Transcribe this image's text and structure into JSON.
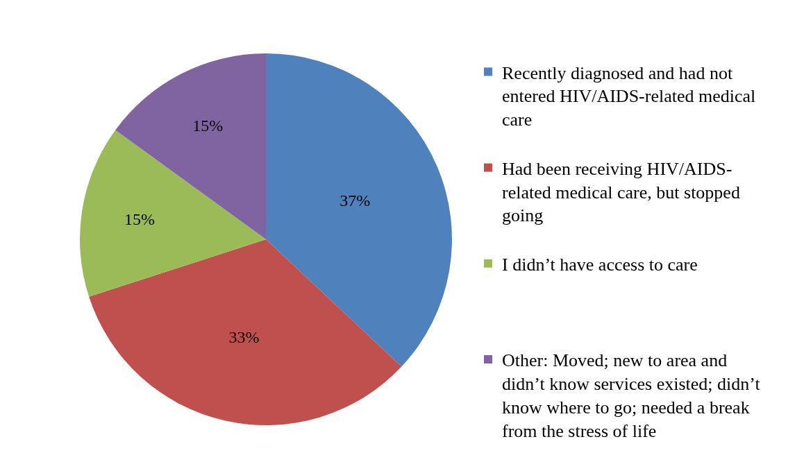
{
  "chart_data": {
    "type": "pie",
    "categories": [
      "Recently diagnosed and had not entered HIV/AIDS-related medical care",
      "Had been receiving HIV/AIDS-related medical care, but stopped going",
      "I didn’t have access to care",
      "Other: Moved; new to area and didn’t know services existed; didn’t know where to go; needed a break from the stress of life"
    ],
    "values": [
      37,
      33,
      15,
      15
    ],
    "colors": [
      "#4f81bd",
      "#c0504d",
      "#9bbb59",
      "#8064a2"
    ],
    "value_labels": [
      "37%",
      "33%",
      "15%",
      "15%"
    ],
    "legend": "right"
  }
}
